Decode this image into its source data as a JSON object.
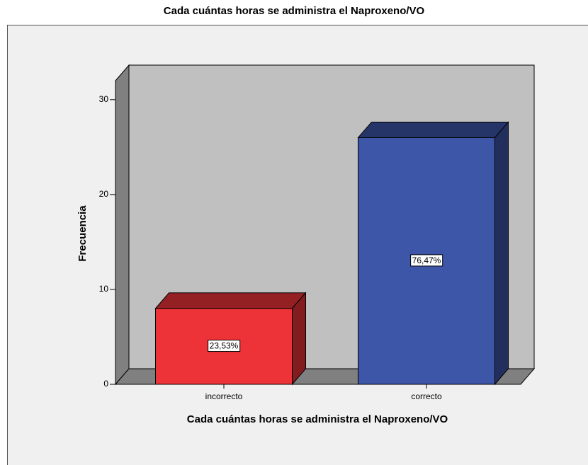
{
  "chart_data": {
    "type": "bar3d",
    "title": "Cada cuántas horas se administra el Naproxeno/VO",
    "x_label": "Cada cuántas horas se administra el Naproxeno/VO",
    "y_label": "Frecuencia",
    "categories": [
      "incorrecto",
      "correcto"
    ],
    "values": [
      8,
      26
    ],
    "data_labels": [
      "23,53%",
      "76,47%"
    ],
    "colors": [
      "#ee3338",
      "#3d56a8"
    ],
    "ylim": [
      0,
      32
    ],
    "yticks": [
      0,
      10,
      20,
      30
    ]
  }
}
